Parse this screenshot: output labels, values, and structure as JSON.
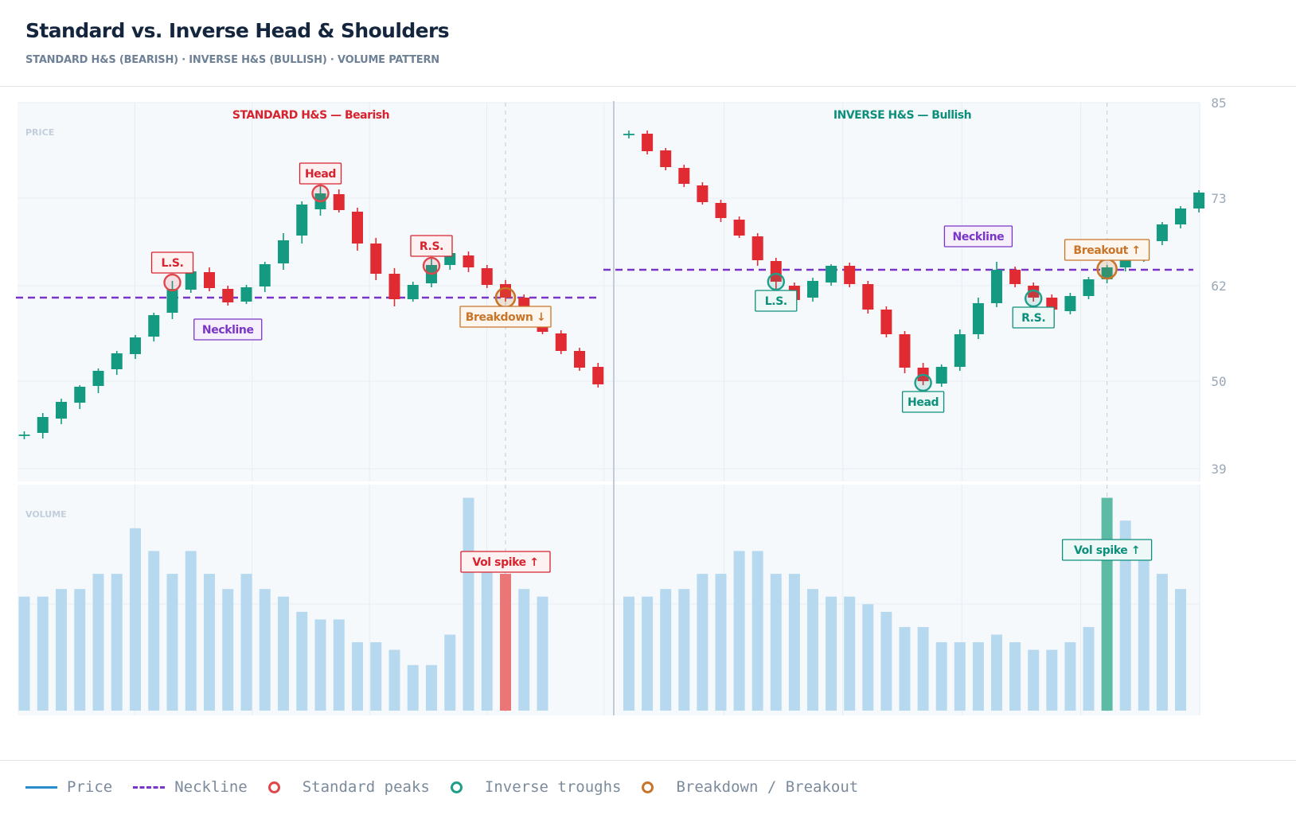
{
  "header": {
    "title": "Standard vs. Inverse Head & Shoulders",
    "subtitle": "STANDARD H&S (BEARISH) · INVERSE H&S (BULLISH) · VOLUME PATTERN"
  },
  "legend": {
    "items": [
      {
        "label": "Price",
        "kind": "line",
        "color": "#2a8ccd"
      },
      {
        "label": "Neckline",
        "kind": "dash",
        "color": "#7a35c7"
      },
      {
        "label": "Standard peaks",
        "kind": "circle",
        "color": "#e0474c"
      },
      {
        "label": "Inverse troughs",
        "kind": "circle",
        "color": "#1f9e8a"
      },
      {
        "label": "Breakdown / Breakout",
        "kind": "circle",
        "color": "#c8752a"
      }
    ]
  },
  "colors": {
    "up": "#139a80",
    "down": "#e02b33",
    "neckline": "#7a35c7",
    "bearish": "#d6232e",
    "bullish": "#0e8f7c",
    "breakout": "#c8752a",
    "volume": "#b7d9ef"
  },
  "chart_data": {
    "type": "candlestick",
    "panel_labels": {
      "price": "PRICE",
      "volume": "VOLUME"
    },
    "y_axis": {
      "range": [
        39,
        85
      ],
      "ticks": [
        39,
        50,
        62,
        73,
        85
      ]
    },
    "volume_range": [
      0,
      29
    ],
    "panels": [
      {
        "title": "STANDARD H&S — Bearish",
        "neckline": 60.5,
        "candles": [
          {
            "o": 43.2,
            "h": 43.7,
            "l": 42.7,
            "c": 43.2
          },
          {
            "o": 43.5,
            "h": 46.0,
            "l": 42.8,
            "c": 45.5
          },
          {
            "o": 45.3,
            "h": 47.8,
            "l": 44.6,
            "c": 47.4
          },
          {
            "o": 47.3,
            "h": 49.5,
            "l": 46.5,
            "c": 49.3
          },
          {
            "o": 49.4,
            "h": 51.6,
            "l": 48.5,
            "c": 51.3
          },
          {
            "o": 51.5,
            "h": 53.8,
            "l": 50.8,
            "c": 53.5
          },
          {
            "o": 53.4,
            "h": 55.8,
            "l": 52.8,
            "c": 55.5
          },
          {
            "o": 55.6,
            "h": 58.6,
            "l": 55.0,
            "c": 58.3
          },
          {
            "o": 58.6,
            "h": 62.6,
            "l": 57.8,
            "c": 61.6
          },
          {
            "o": 61.5,
            "h": 64.1,
            "l": 61.1,
            "c": 63.8
          },
          {
            "o": 63.7,
            "h": 64.3,
            "l": 61.3,
            "c": 61.7
          },
          {
            "o": 61.6,
            "h": 62.0,
            "l": 59.5,
            "c": 59.9
          },
          {
            "o": 60.0,
            "h": 62.1,
            "l": 59.7,
            "c": 61.8
          },
          {
            "o": 61.9,
            "h": 65.0,
            "l": 61.2,
            "c": 64.7
          },
          {
            "o": 64.8,
            "h": 68.6,
            "l": 64.0,
            "c": 67.7
          },
          {
            "o": 68.3,
            "h": 72.6,
            "l": 67.3,
            "c": 72.2
          },
          {
            "o": 71.6,
            "h": 74.7,
            "l": 70.8,
            "c": 73.6
          },
          {
            "o": 73.5,
            "h": 74.1,
            "l": 71.2,
            "c": 71.5
          },
          {
            "o": 71.3,
            "h": 71.8,
            "l": 66.4,
            "c": 67.3
          },
          {
            "o": 67.3,
            "h": 68.0,
            "l": 62.7,
            "c": 63.5
          },
          {
            "o": 63.5,
            "h": 64.2,
            "l": 59.4,
            "c": 60.3
          },
          {
            "o": 60.3,
            "h": 62.5,
            "l": 60.0,
            "c": 62.1
          },
          {
            "o": 62.3,
            "h": 65.5,
            "l": 61.8,
            "c": 64.6
          },
          {
            "o": 64.6,
            "h": 66.1,
            "l": 64.0,
            "c": 66.1
          },
          {
            "o": 65.8,
            "h": 66.3,
            "l": 63.7,
            "c": 64.3
          },
          {
            "o": 64.2,
            "h": 64.6,
            "l": 61.7,
            "c": 62.1
          },
          {
            "o": 62.2,
            "h": 62.7,
            "l": 60.0,
            "c": 60.5
          },
          {
            "o": 60.5,
            "h": 60.9,
            "l": 58.1,
            "c": 58.4
          },
          {
            "o": 58.3,
            "h": 58.7,
            "l": 55.9,
            "c": 56.2
          },
          {
            "o": 56.0,
            "h": 56.4,
            "l": 53.4,
            "c": 53.8
          },
          {
            "o": 53.8,
            "h": 54.2,
            "l": 51.3,
            "c": 51.7
          },
          {
            "o": 51.8,
            "h": 52.3,
            "l": 49.2,
            "c": 49.6
          }
        ],
        "volume": [
          15,
          15,
          16,
          16,
          18,
          18,
          24,
          21,
          18,
          21,
          18,
          16,
          18,
          16,
          15,
          13,
          12,
          12,
          9,
          9,
          8,
          6,
          6,
          10,
          28,
          21,
          18,
          16,
          15,
          0,
          0,
          0
        ],
        "highlight_volume_index": 26,
        "annotations": [
          {
            "label": "L.S.",
            "index": 8,
            "value": 62.4,
            "style": "bearish"
          },
          {
            "label": "Head",
            "index": 16,
            "value": 73.6,
            "style": "bearish"
          },
          {
            "label": "R.S.",
            "index": 22,
            "value": 64.5,
            "style": "bearish"
          },
          {
            "label": "Neckline",
            "index": 11,
            "value": 56.5,
            "style": "neckline"
          },
          {
            "label": "Breakdown ↓",
            "index": 26,
            "value": 60.5,
            "style": "breakout"
          },
          {
            "label": "Vol spike ↑",
            "index": 26,
            "style": "bearish",
            "panel": "volume"
          }
        ]
      },
      {
        "title": "INVERSE H&S — Bullish",
        "neckline": 64.0,
        "candles": [
          {
            "o": 81.0,
            "h": 81.5,
            "l": 80.5,
            "c": 81.0
          },
          {
            "o": 81.1,
            "h": 81.5,
            "l": 78.5,
            "c": 78.9
          },
          {
            "o": 79.0,
            "h": 79.3,
            "l": 76.5,
            "c": 76.9
          },
          {
            "o": 76.8,
            "h": 77.2,
            "l": 74.4,
            "c": 74.8
          },
          {
            "o": 74.6,
            "h": 75.0,
            "l": 72.2,
            "c": 72.5
          },
          {
            "o": 72.4,
            "h": 72.8,
            "l": 70.0,
            "c": 70.5
          },
          {
            "o": 70.3,
            "h": 70.7,
            "l": 68.0,
            "c": 68.3
          },
          {
            "o": 68.2,
            "h": 68.6,
            "l": 64.5,
            "c": 65.2
          },
          {
            "o": 65.1,
            "h": 65.5,
            "l": 61.5,
            "c": 62.5
          },
          {
            "o": 62.0,
            "h": 62.4,
            "l": 59.8,
            "c": 60.2
          },
          {
            "o": 60.5,
            "h": 63.0,
            "l": 60.0,
            "c": 62.6
          },
          {
            "o": 62.4,
            "h": 64.7,
            "l": 62.0,
            "c": 64.5
          },
          {
            "o": 64.5,
            "h": 64.9,
            "l": 61.8,
            "c": 62.2
          },
          {
            "o": 62.2,
            "h": 62.6,
            "l": 58.5,
            "c": 59.0
          },
          {
            "o": 59.0,
            "h": 59.4,
            "l": 55.5,
            "c": 55.9
          },
          {
            "o": 55.9,
            "h": 56.3,
            "l": 51.0,
            "c": 51.7
          },
          {
            "o": 51.7,
            "h": 52.3,
            "l": 49.5,
            "c": 50.0
          },
          {
            "o": 49.7,
            "h": 52.1,
            "l": 49.3,
            "c": 51.8
          },
          {
            "o": 51.8,
            "h": 56.5,
            "l": 51.3,
            "c": 55.9
          },
          {
            "o": 55.9,
            "h": 60.5,
            "l": 55.3,
            "c": 59.8
          },
          {
            "o": 59.8,
            "h": 65.0,
            "l": 59.3,
            "c": 64.0
          },
          {
            "o": 64.0,
            "h": 64.4,
            "l": 61.8,
            "c": 62.2
          },
          {
            "o": 62.0,
            "h": 62.4,
            "l": 60.0,
            "c": 60.5
          },
          {
            "o": 60.5,
            "h": 60.9,
            "l": 58.6,
            "c": 59.0
          },
          {
            "o": 58.8,
            "h": 61.1,
            "l": 58.4,
            "c": 60.7
          },
          {
            "o": 60.7,
            "h": 63.1,
            "l": 60.3,
            "c": 62.8
          },
          {
            "o": 62.8,
            "h": 64.6,
            "l": 62.3,
            "c": 64.3
          },
          {
            "o": 64.3,
            "h": 65.9,
            "l": 63.8,
            "c": 65.5
          },
          {
            "o": 65.5,
            "h": 67.8,
            "l": 65.0,
            "c": 67.5
          },
          {
            "o": 67.6,
            "h": 70.0,
            "l": 67.1,
            "c": 69.7
          },
          {
            "o": 69.7,
            "h": 72.0,
            "l": 69.2,
            "c": 71.7
          },
          {
            "o": 71.7,
            "h": 74.0,
            "l": 71.2,
            "c": 73.7
          }
        ],
        "volume": [
          15,
          15,
          16,
          16,
          18,
          18,
          21,
          21,
          18,
          18,
          16,
          15,
          15,
          14,
          13,
          11,
          11,
          9,
          9,
          9,
          10,
          9,
          8,
          8,
          9,
          11,
          28,
          25,
          20,
          18,
          16,
          0
        ],
        "highlight_volume_index": 26,
        "annotations": [
          {
            "label": "L.S.",
            "index": 8,
            "value": 62.5,
            "style": "bullish"
          },
          {
            "label": "Head",
            "index": 16,
            "value": 49.8,
            "style": "bullish"
          },
          {
            "label": "R.S.",
            "index": 22,
            "value": 60.4,
            "style": "bullish"
          },
          {
            "label": "Neckline",
            "index": 19,
            "value": 68.2,
            "style": "neckline"
          },
          {
            "label": "Breakout ↑",
            "index": 26,
            "value": 64.1,
            "style": "breakout"
          },
          {
            "label": "Vol spike ↑",
            "index": 26,
            "style": "bullish",
            "panel": "volume"
          }
        ]
      }
    ]
  }
}
